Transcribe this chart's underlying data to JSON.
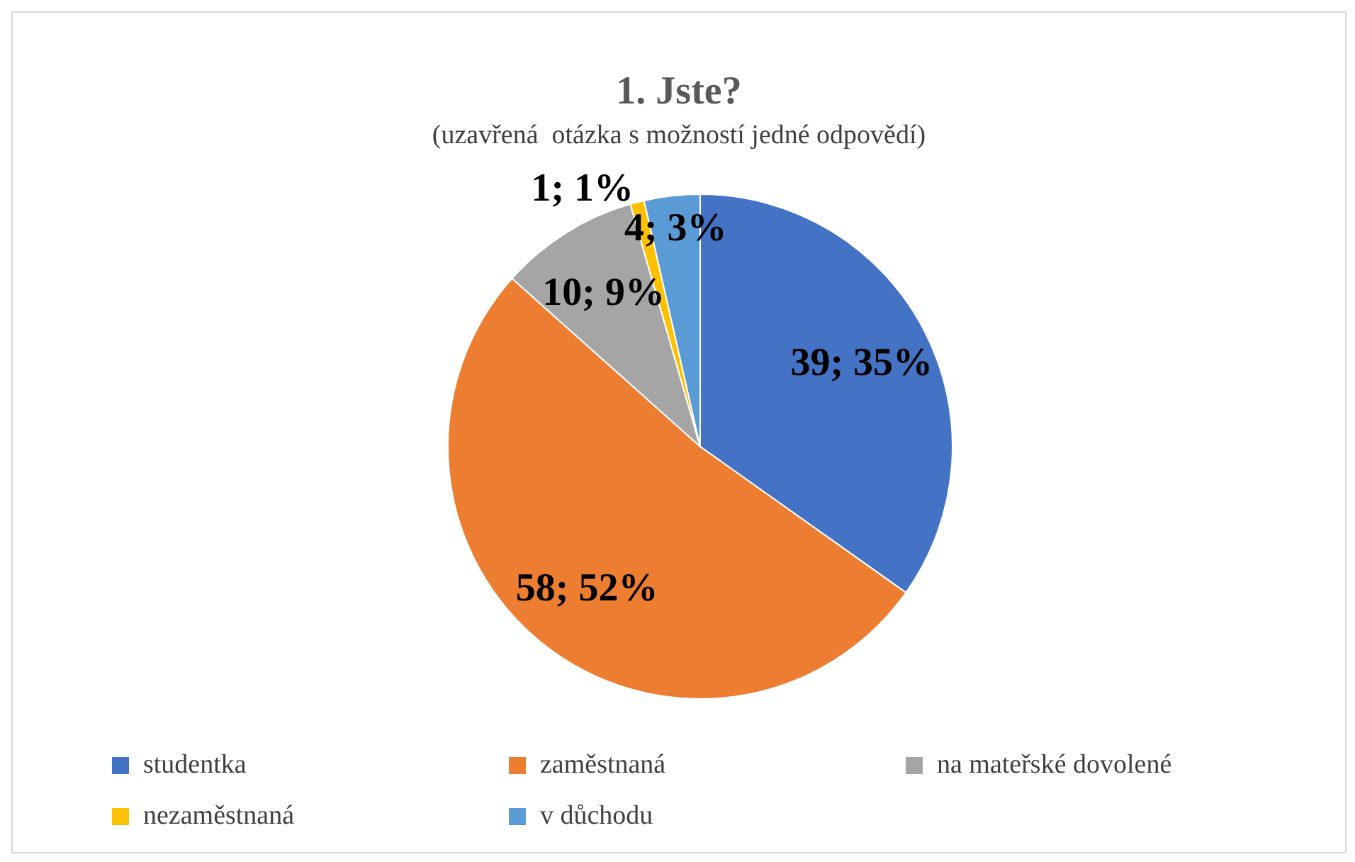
{
  "chart_data": {
    "type": "pie",
    "title": "1. Jste?",
    "subtitle": "(uzavřená  otázka s možností jedné odpovědí)",
    "categories": [
      "studentka",
      "zaměstnaná",
      "na mateřské dovolené",
      "nezaměstnaná",
      "v důchodu"
    ],
    "values": [
      39,
      58,
      10,
      1,
      4
    ],
    "colors": [
      "#4472c4",
      "#ed7d31",
      "#a5a5a5",
      "#ffc000",
      "#5b9bd5"
    ],
    "value_labels": [
      "39; 35%",
      "58; 52%",
      "10; 9%",
      "1; 1%",
      "4; 3%"
    ],
    "legend": "bottom"
  }
}
